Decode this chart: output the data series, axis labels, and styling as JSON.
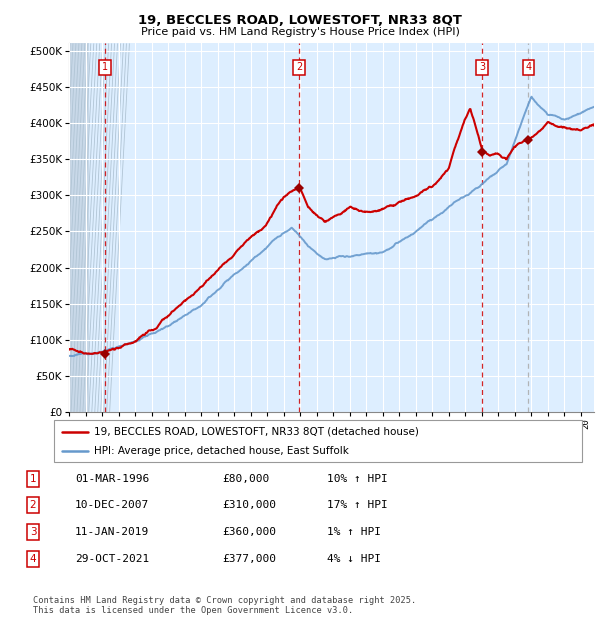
{
  "title1": "19, BECCLES ROAD, LOWESTOFT, NR33 8QT",
  "title2": "Price paid vs. HM Land Registry's House Price Index (HPI)",
  "legend_line1": "19, BECCLES ROAD, LOWESTOFT, NR33 8QT (detached house)",
  "legend_line2": "HPI: Average price, detached house, East Suffolk",
  "footer": "Contains HM Land Registry data © Crown copyright and database right 2025.\nThis data is licensed under the Open Government Licence v3.0.",
  "transactions": [
    {
      "num": 1,
      "date": "01-MAR-1996",
      "price": 80000,
      "pct": "10%",
      "dir": "↑",
      "x_year": 1996.17
    },
    {
      "num": 2,
      "date": "10-DEC-2007",
      "price": 310000,
      "pct": "17%",
      "dir": "↑",
      "x_year": 2007.94
    },
    {
      "num": 3,
      "date": "11-JAN-2019",
      "price": 360000,
      "pct": "1%",
      "dir": "↑",
      "x_year": 2019.03
    },
    {
      "num": 4,
      "date": "29-OCT-2021",
      "price": 377000,
      "pct": "4%",
      "dir": "↓",
      "x_year": 2021.83
    }
  ],
  "sale_points": [
    [
      1996.17,
      80000
    ],
    [
      2007.94,
      310000
    ],
    [
      2019.03,
      360000
    ],
    [
      2021.83,
      377000
    ]
  ],
  "hpi_color": "#6699cc",
  "price_color": "#cc0000",
  "vline_color_sale": "#cc0000",
  "vline_color_last": "#aaaaaa",
  "bg_color": "#ddeeff",
  "hatch_area_color": "#c8d8e8",
  "hatch_line_color": "#b0c4d4",
  "ylim": [
    0,
    510000
  ],
  "xlim_start": 1994.0,
  "xlim_end": 2025.8,
  "hatch_end": 1995.2,
  "yticks": [
    0,
    50000,
    100000,
    150000,
    200000,
    250000,
    300000,
    350000,
    400000,
    450000,
    500000
  ],
  "xtick_years": [
    1994,
    1995,
    1996,
    1997,
    1998,
    1999,
    2000,
    2001,
    2002,
    2003,
    2004,
    2005,
    2006,
    2007,
    2008,
    2009,
    2010,
    2011,
    2012,
    2013,
    2014,
    2015,
    2016,
    2017,
    2018,
    2019,
    2020,
    2021,
    2022,
    2023,
    2024,
    2025
  ],
  "fig_width": 6.0,
  "fig_height": 6.2,
  "fig_dpi": 100
}
